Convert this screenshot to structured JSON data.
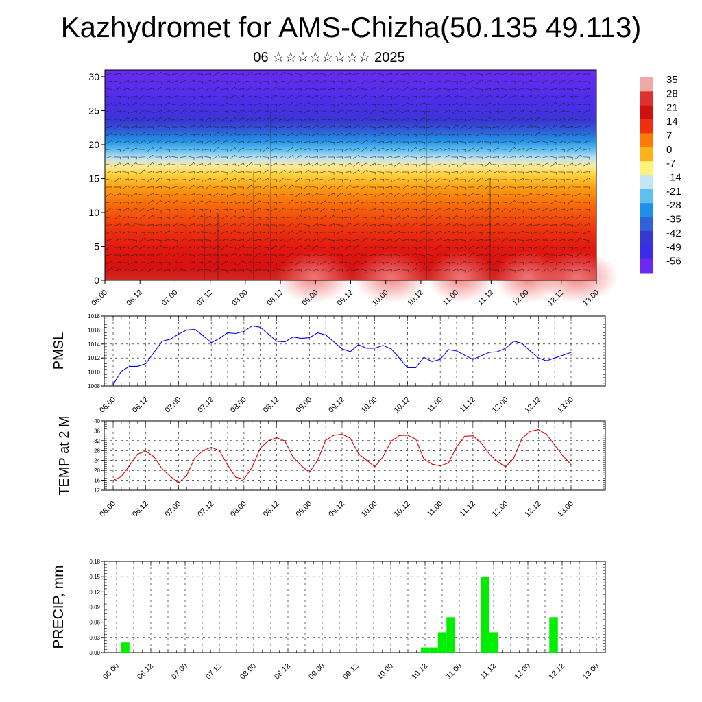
{
  "header": {
    "title": "Kazhydromet for AMS-Chizha(50.135 49.113)",
    "subtitle": "06 ☆☆☆☆☆☆☆☆ 2025"
  },
  "chart_data": [
    {
      "type": "heatmap",
      "title": "",
      "ylim": [
        0,
        31
      ],
      "yticks": [
        "0",
        "5",
        "10",
        "15",
        "20",
        "25",
        "30"
      ],
      "x_ticklabels": [
        "06.00",
        "06.12",
        "07.00",
        "07.12",
        "08.00",
        "08.12",
        "09.00",
        "09.12",
        "10.00",
        "10.12",
        "11.00",
        "11.12",
        "12.00",
        "12.12",
        "13.00"
      ],
      "colorbar_labels": [
        "35",
        "28",
        "21",
        "14",
        "7",
        "0",
        "-7",
        "-14",
        "-21",
        "-28",
        "-35",
        "-42",
        "-49",
        "-56"
      ],
      "color_stops": [
        {
          "value": 35,
          "color": "#f0a7a7"
        },
        {
          "value": 28,
          "color": "#dd3030"
        },
        {
          "value": 21,
          "color": "#cf1010"
        },
        {
          "value": 14,
          "color": "#ee3010"
        },
        {
          "value": 7,
          "color": "#fb7a0a"
        },
        {
          "value": 0,
          "color": "#feb21a"
        },
        {
          "value": -7,
          "color": "#fff27a"
        },
        {
          "value": -14,
          "color": "#c2e6f2"
        },
        {
          "value": -21,
          "color": "#5ec0f0"
        },
        {
          "value": -28,
          "color": "#1f8fe8"
        },
        {
          "value": -35,
          "color": "#2e62d6"
        },
        {
          "value": -42,
          "color": "#3438d2"
        },
        {
          "value": -49,
          "color": "#3a2ce8"
        },
        {
          "value": -56,
          "color": "#6a2af0"
        }
      ],
      "grid": false
    },
    {
      "type": "line",
      "ylabel": "PMSL",
      "ylim": [
        1008,
        1018
      ],
      "yticks": [
        "1008",
        "1010",
        "1012",
        "1014",
        "1016",
        "1018"
      ],
      "x_ticklabels": [
        "06.00",
        "06.12",
        "07.00",
        "07.12",
        "08.00",
        "08.12",
        "09.00",
        "09.12",
        "10.00",
        "10.12",
        "11.00",
        "11.12",
        "12.00",
        "12.12",
        "13.00"
      ],
      "grid": true,
      "series": [
        {
          "color": "#0000ff",
          "x_hours": [
            0,
            3,
            6,
            9,
            12,
            15,
            18,
            21,
            24,
            27,
            30,
            33,
            36,
            39,
            42,
            45,
            48,
            51,
            54,
            57,
            60,
            63,
            66,
            69,
            72,
            75,
            78,
            81,
            84,
            87,
            90,
            93,
            96,
            99,
            102,
            105,
            108,
            111,
            114,
            117,
            120,
            123,
            126,
            129,
            132,
            135,
            138,
            141,
            144,
            147,
            150,
            153,
            156,
            159,
            162,
            165,
            168
          ],
          "values": [
            1008.2,
            1010.1,
            1010.8,
            1010.8,
            1011.2,
            1012.8,
            1014.4,
            1014.7,
            1015.4,
            1016.0,
            1016.1,
            1015.2,
            1014.2,
            1014.8,
            1015.6,
            1015.5,
            1015.8,
            1016.6,
            1016.4,
            1015.4,
            1014.4,
            1014.3,
            1015.0,
            1014.8,
            1014.9,
            1015.6,
            1015.3,
            1014.3,
            1013.3,
            1012.9,
            1013.9,
            1013.4,
            1013.4,
            1013.8,
            1013.3,
            1012.0,
            1010.6,
            1010.6,
            1012.1,
            1011.5,
            1011.8,
            1013.2,
            1013.0,
            1012.4,
            1011.8,
            1012.3,
            1012.8,
            1012.9,
            1013.4,
            1014.4,
            1014.1,
            1013.0,
            1012.0,
            1011.6,
            1012.0,
            1012.4,
            1012.8
          ]
        }
      ]
    },
    {
      "type": "line",
      "ylabel": "TEMP at 2 M",
      "ylim": [
        12,
        40
      ],
      "yticks": [
        "12",
        "16",
        "20",
        "24",
        "28",
        "32",
        "36",
        "40"
      ],
      "x_ticklabels": [
        "06.00",
        "06.12",
        "07.00",
        "07.12",
        "08.00",
        "08.12",
        "09.00",
        "09.12",
        "10.00",
        "10.12",
        "11.00",
        "11.12",
        "12.00",
        "12.12",
        "13.00"
      ],
      "grid": true,
      "series": [
        {
          "color": "#dd0000",
          "x_hours": [
            0,
            3,
            6,
            9,
            12,
            15,
            18,
            21,
            24,
            27,
            30,
            33,
            36,
            39,
            42,
            45,
            48,
            51,
            54,
            57,
            60,
            63,
            66,
            69,
            72,
            75,
            78,
            81,
            84,
            87,
            90,
            93,
            96,
            99,
            102,
            105,
            108,
            111,
            114,
            117,
            120,
            123,
            126,
            129,
            132,
            135,
            138,
            141,
            144,
            147,
            150,
            153,
            156,
            159,
            162,
            165,
            168
          ],
          "values": [
            16.0,
            17.5,
            22.0,
            26.6,
            27.8,
            25.5,
            20.6,
            17.6,
            14.9,
            18.0,
            25.1,
            28.0,
            29.3,
            28.0,
            22.2,
            17.2,
            16.4,
            21.3,
            29.0,
            32.0,
            33.2,
            31.9,
            25.4,
            21.9,
            19.2,
            24.0,
            32.2,
            34.2,
            34.6,
            33.0,
            26.8,
            24.1,
            21.4,
            25.5,
            31.8,
            34.1,
            34.2,
            32.7,
            24.6,
            22.5,
            21.8,
            23.0,
            29.5,
            33.8,
            34.0,
            31.1,
            26.6,
            23.6,
            21.4,
            25.0,
            33.0,
            35.8,
            36.5,
            34.6,
            30.2,
            25.9,
            22.3
          ]
        }
      ]
    },
    {
      "type": "bar",
      "ylabel": "PRECIP, mm",
      "ylim": [
        0,
        0.18
      ],
      "yticks": [
        "0.00",
        "0.03",
        "0.06",
        "0.09",
        "0.12",
        "0.15",
        "0.18"
      ],
      "x_ticklabels": [
        "06.00",
        "06.12",
        "07.00",
        "07.12",
        "08.00",
        "08.12",
        "09.00",
        "09.12",
        "10.00",
        "10.12",
        "11.00",
        "11.12",
        "12.00",
        "12.12",
        "13.00"
      ],
      "grid": true,
      "series": [
        {
          "color": "#00ee00",
          "x_hours": [
            3,
            108,
            111,
            114,
            117,
            129,
            132,
            153
          ],
          "values": [
            0.02,
            0.01,
            0.01,
            0.04,
            0.07,
            0.15,
            0.04,
            0.07
          ]
        }
      ]
    }
  ]
}
